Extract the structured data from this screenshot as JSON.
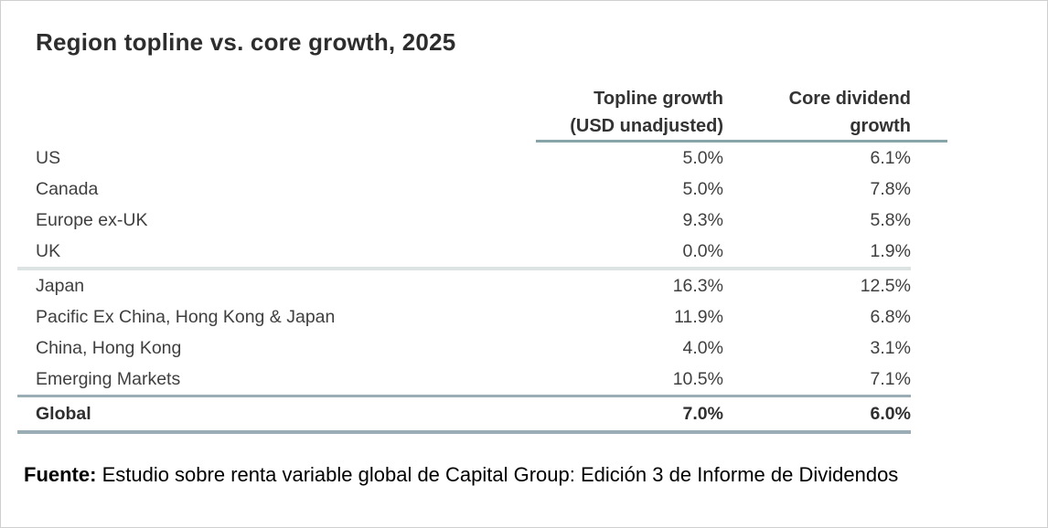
{
  "title": "Region topline vs. core growth, 2025",
  "table": {
    "header": {
      "topline_line1": "Topline growth",
      "topline_line2": "(USD unadjusted)",
      "core_line1": "Core dividend",
      "core_line2": "growth"
    },
    "rows": [
      {
        "region": "US",
        "topline": "5.0%",
        "core": "6.1%"
      },
      {
        "region": "Canada",
        "topline": "5.0%",
        "core": "7.8%"
      },
      {
        "region": "Europe ex-UK",
        "topline": "9.3%",
        "core": "5.8%"
      },
      {
        "region": "UK",
        "topline": "0.0%",
        "core": "1.9%"
      },
      {
        "region": "Japan",
        "topline": "16.3%",
        "core": "12.5%"
      },
      {
        "region": "Pacific Ex China, Hong Kong & Japan",
        "topline": "11.9%",
        "core": "6.8%"
      },
      {
        "region": "China, Hong Kong",
        "topline": "4.0%",
        "core": "3.1%"
      },
      {
        "region": "Emerging Markets",
        "topline": "10.5%",
        "core": "7.1%"
      }
    ],
    "total_row": {
      "region": "Global",
      "topline": "7.0%",
      "core": "6.0%"
    }
  },
  "footer": {
    "label": "Fuente:",
    "text": " Estudio sobre renta variable global de Capital Group: Edición 3 de Informe de Dividendos"
  },
  "colors": {
    "accent_line": "#87a4a8",
    "light_line": "#dde3e3",
    "dark_line": "#9badb4",
    "text": "#3f3f3f"
  },
  "chart_data": {
    "type": "table",
    "title": "Region topline vs. core growth, 2025",
    "columns": [
      "Region",
      "Topline growth (USD unadjusted)",
      "Core dividend growth"
    ],
    "categories": [
      "US",
      "Canada",
      "Europe ex-UK",
      "UK",
      "Japan",
      "Pacific Ex China, Hong Kong & Japan",
      "China, Hong Kong",
      "Emerging Markets",
      "Global"
    ],
    "series": [
      {
        "name": "Topline growth (USD unadjusted)",
        "values": [
          5.0,
          5.0,
          9.3,
          0.0,
          16.3,
          11.9,
          4.0,
          10.5,
          7.0
        ]
      },
      {
        "name": "Core dividend growth",
        "values": [
          6.1,
          7.8,
          5.8,
          1.9,
          12.5,
          6.8,
          3.1,
          7.1,
          6.0
        ]
      }
    ],
    "unit": "%",
    "source": "Fuente: Estudio sobre renta variable global de Capital Group: Edición 3 de Informe de Dividendos"
  }
}
